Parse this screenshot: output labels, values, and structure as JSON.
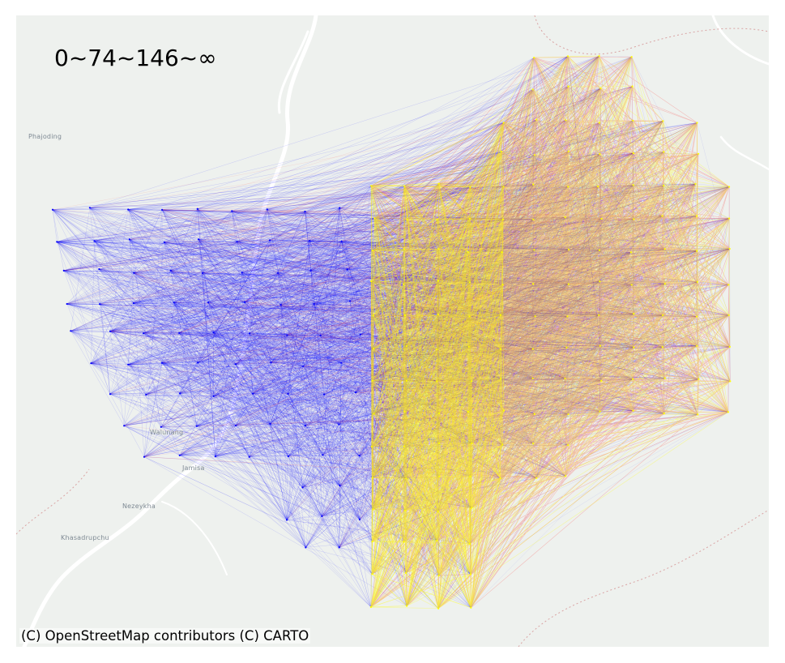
{
  "legend": {
    "title": "0~74~146~∞"
  },
  "attribution": "(C) OpenStreetMap contributors (C) CARTO",
  "places": [
    {
      "name": "Phajoding"
    },
    {
      "name": "Walunang"
    },
    {
      "name": "Jamisa"
    },
    {
      "name": "Nezeykha"
    },
    {
      "name": "Khasadrupchu"
    }
  ],
  "network": {
    "classes": [
      {
        "range": "0~74",
        "color": "#ffff00"
      },
      {
        "range": "74~146",
        "color": "#ff0000"
      },
      {
        "range": "146~∞",
        "color": "#0000ff"
      }
    ]
  },
  "colors": {
    "map_background": "#eef1ee",
    "road": "#ffffff",
    "boundary": "#d9a3a3"
  }
}
